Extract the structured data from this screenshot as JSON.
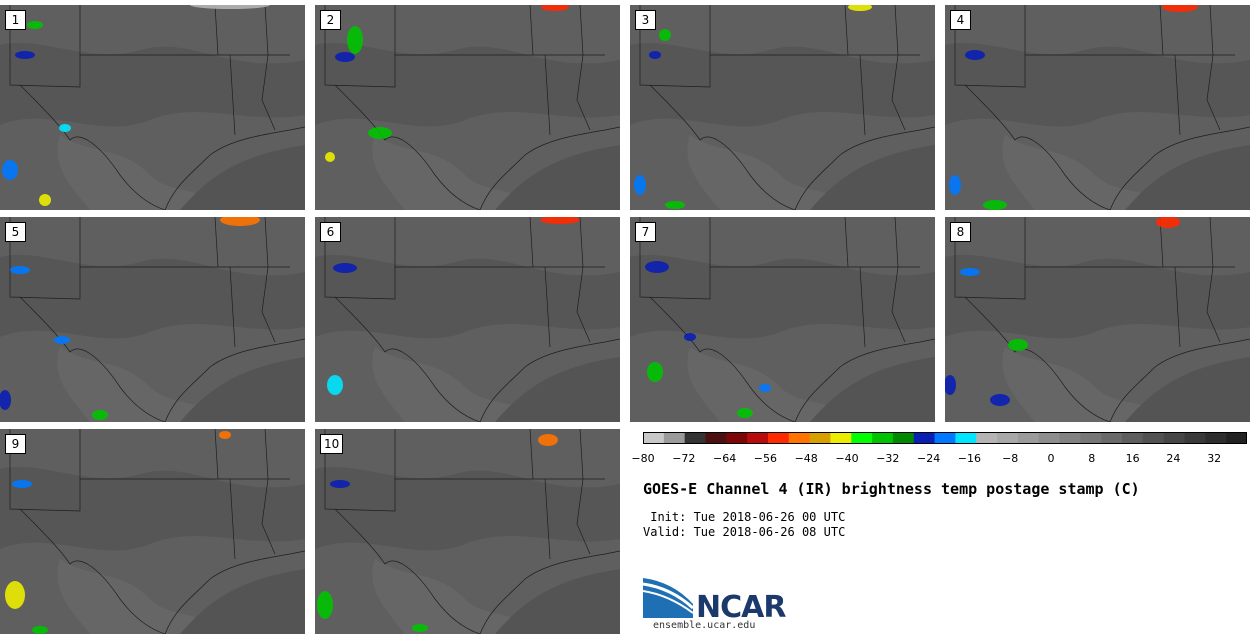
{
  "panels": [
    {
      "label": "1"
    },
    {
      "label": "2"
    },
    {
      "label": "3"
    },
    {
      "label": "4"
    },
    {
      "label": "5"
    },
    {
      "label": "6"
    },
    {
      "label": "7"
    },
    {
      "label": "8"
    },
    {
      "label": "9"
    },
    {
      "label": "10"
    }
  ],
  "colorbar": {
    "colors": [
      "#c8c8c8",
      "#9b9b9b",
      "#343434",
      "#4b1010",
      "#7d0707",
      "#b80b0b",
      "#ff2a00",
      "#ff7300",
      "#d7a000",
      "#ecec00",
      "#00ff00",
      "#00c300",
      "#008a00",
      "#0a1fb4",
      "#0078ff",
      "#00e5ff",
      "#b4b4b4",
      "#a8a8a8",
      "#9b9b9b",
      "#8e8e8e",
      "#828282",
      "#767676",
      "#6a6a6a",
      "#5e5e5e",
      "#525252",
      "#464646",
      "#3a3a3a",
      "#2e2e2e",
      "#222222"
    ],
    "ticks": [
      "−80",
      "−72",
      "−64",
      "−56",
      "−48",
      "−40",
      "−32",
      "−24",
      "−16",
      "−8",
      "0",
      "8",
      "16",
      "24",
      "32"
    ]
  },
  "title": "GOES-E Channel 4 (IR) brightness temp postage stamp (C)",
  "init_line": " Init: Tue 2018-06-26 00 UTC",
  "valid_line": "Valid: Tue 2018-06-26 08 UTC",
  "logo": {
    "name": "NCAR",
    "url": "ensemble.ucar.edu"
  }
}
